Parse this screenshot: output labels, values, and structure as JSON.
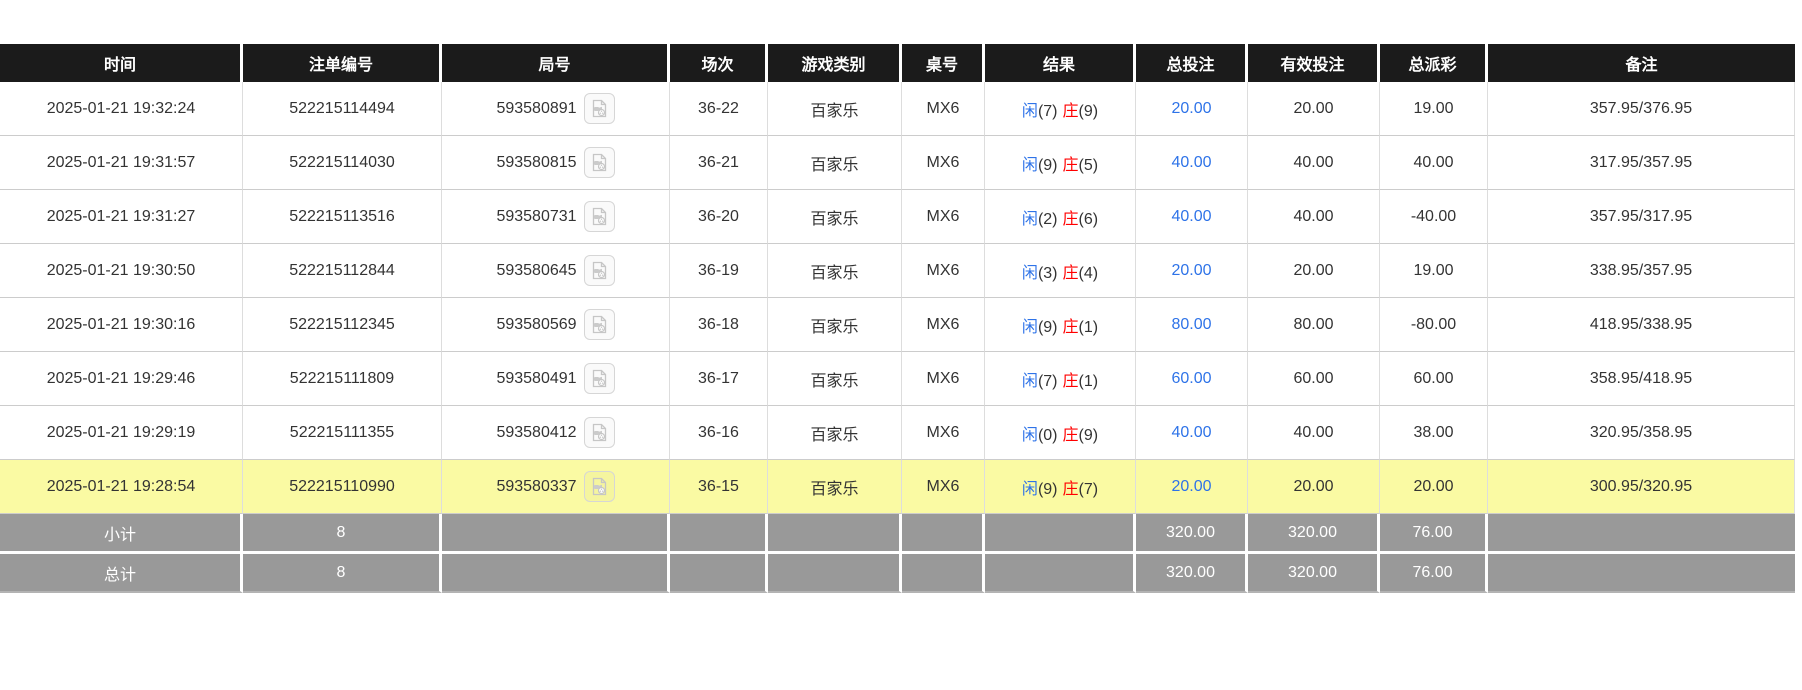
{
  "colors": {
    "header_bg": "#1b1b1b",
    "link_blue": "#2e73e8",
    "player_blue": "#2e73e8",
    "banker_red": "#ff0000",
    "negative_red": "#ff0000",
    "highlight_yellow": "#fafaa3",
    "summary_gray": "#999999"
  },
  "icons": {
    "round_replay": "video-file-icon"
  },
  "table": {
    "headers": [
      "时间",
      "注单编号",
      "局号",
      "场次",
      "游戏类别",
      "桌号",
      "结果",
      "总投注",
      "有效投注",
      "总派彩",
      "备注"
    ],
    "rows": [
      {
        "time": "2025-01-21 19:32:24",
        "bet_id": "522215114494",
        "round_id": "593580891",
        "session": "36-22",
        "game_type": "百家乐",
        "table_no": "MX6",
        "result": {
          "player_label": "闲",
          "player_score": "(7)",
          "banker_label": "庄",
          "banker_score": "(9)"
        },
        "total_bet": "20.00",
        "valid_bet": "20.00",
        "payout": "19.00",
        "remark": "357.95/376.95",
        "highlighted": false
      },
      {
        "time": "2025-01-21 19:31:57",
        "bet_id": "522215114030",
        "round_id": "593580815",
        "session": "36-21",
        "game_type": "百家乐",
        "table_no": "MX6",
        "result": {
          "player_label": "闲",
          "player_score": "(9)",
          "banker_label": "庄",
          "banker_score": "(5)"
        },
        "total_bet": "40.00",
        "valid_bet": "40.00",
        "payout": "40.00",
        "remark": "317.95/357.95",
        "highlighted": false
      },
      {
        "time": "2025-01-21 19:31:27",
        "bet_id": "522215113516",
        "round_id": "593580731",
        "session": "36-20",
        "game_type": "百家乐",
        "table_no": "MX6",
        "result": {
          "player_label": "闲",
          "player_score": "(2)",
          "banker_label": "庄",
          "banker_score": "(6)"
        },
        "total_bet": "40.00",
        "valid_bet": "40.00",
        "payout": "-40.00",
        "remark": "357.95/317.95",
        "highlighted": false
      },
      {
        "time": "2025-01-21 19:30:50",
        "bet_id": "522215112844",
        "round_id": "593580645",
        "session": "36-19",
        "game_type": "百家乐",
        "table_no": "MX6",
        "result": {
          "player_label": "闲",
          "player_score": "(3)",
          "banker_label": "庄",
          "banker_score": "(4)"
        },
        "total_bet": "20.00",
        "valid_bet": "20.00",
        "payout": "19.00",
        "remark": "338.95/357.95",
        "highlighted": false
      },
      {
        "time": "2025-01-21 19:30:16",
        "bet_id": "522215112345",
        "round_id": "593580569",
        "session": "36-18",
        "game_type": "百家乐",
        "table_no": "MX6",
        "result": {
          "player_label": "闲",
          "player_score": "(9)",
          "banker_label": "庄",
          "banker_score": "(1)"
        },
        "total_bet": "80.00",
        "valid_bet": "80.00",
        "payout": "-80.00",
        "remark": "418.95/338.95",
        "highlighted": false
      },
      {
        "time": "2025-01-21 19:29:46",
        "bet_id": "522215111809",
        "round_id": "593580491",
        "session": "36-17",
        "game_type": "百家乐",
        "table_no": "MX6",
        "result": {
          "player_label": "闲",
          "player_score": "(7)",
          "banker_label": "庄",
          "banker_score": "(1)"
        },
        "total_bet": "60.00",
        "valid_bet": "60.00",
        "payout": "60.00",
        "remark": "358.95/418.95",
        "highlighted": false
      },
      {
        "time": "2025-01-21 19:29:19",
        "bet_id": "522215111355",
        "round_id": "593580412",
        "session": "36-16",
        "game_type": "百家乐",
        "table_no": "MX6",
        "result": {
          "player_label": "闲",
          "player_score": "(0)",
          "banker_label": "庄",
          "banker_score": "(9)"
        },
        "total_bet": "40.00",
        "valid_bet": "40.00",
        "payout": "38.00",
        "remark": "320.95/358.95",
        "highlighted": false
      },
      {
        "time": "2025-01-21 19:28:54",
        "bet_id": "522215110990",
        "round_id": "593580337",
        "session": "36-15",
        "game_type": "百家乐",
        "table_no": "MX6",
        "result": {
          "player_label": "闲",
          "player_score": "(9)",
          "banker_label": "庄",
          "banker_score": "(7)"
        },
        "total_bet": "20.00",
        "valid_bet": "20.00",
        "payout": "20.00",
        "remark": "300.95/320.95",
        "highlighted": true
      }
    ],
    "summary_rows": [
      {
        "label": "小计",
        "count": "8",
        "total_bet": "320.00",
        "valid_bet": "320.00",
        "payout": "76.00",
        "remark": ""
      },
      {
        "label": "总计",
        "count": "8",
        "total_bet": "320.00",
        "valid_bet": "320.00",
        "payout": "76.00",
        "remark": ""
      }
    ]
  }
}
